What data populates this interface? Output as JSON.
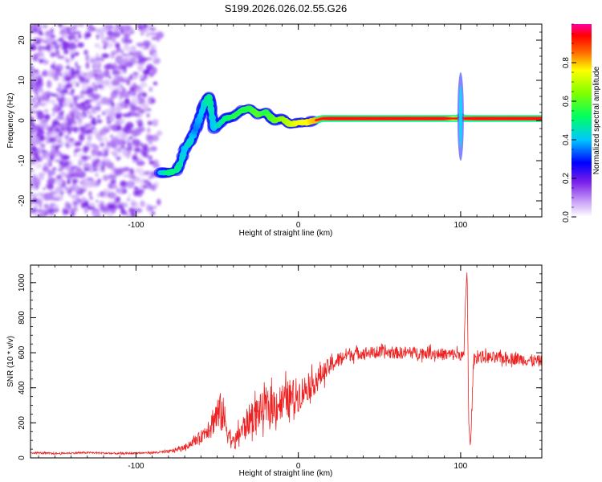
{
  "chart_data": [
    {
      "type": "heatmap",
      "title": "S199.2026.026.02.55.G26",
      "xlabel": "Height of straight line (km)",
      "ylabel": "Frequency (Hz)",
      "xlim": [
        -165,
        150
      ],
      "ylim": [
        -24,
        24
      ],
      "xticks": [
        -100,
        0,
        100
      ],
      "yticks": [
        -20,
        -10,
        0,
        10,
        20
      ],
      "colorbar": {
        "label": "Normalized spectral amplitude",
        "range": [
          0,
          1
        ],
        "ticks": [
          0.0,
          0.2,
          0.4,
          0.6,
          0.8
        ],
        "tick_labels": [
          "0.0",
          "0.2",
          "0.4",
          "0.6",
          "0.8"
        ],
        "colors": [
          "#ffffff",
          "#8a2be2",
          "#0000ff",
          "#00ffff",
          "#00ff00",
          "#ffff00",
          "#ff0000",
          "#ff00a0"
        ]
      },
      "noise_region": {
        "x_range": [
          -165,
          -85
        ],
        "y_range": [
          -24,
          24
        ],
        "amplitude": 0.15
      },
      "signal_track": {
        "x": [
          -85,
          -80,
          -75,
          -72,
          -70,
          -67,
          -63,
          -60,
          -57,
          -55,
          -52,
          -49,
          -45,
          -40,
          -35,
          -30,
          -25,
          -20,
          -15,
          -10,
          -5,
          0,
          5,
          10,
          15,
          20,
          30,
          50,
          70,
          90,
          98,
          100,
          102,
          110,
          130,
          150
        ],
        "y": [
          -13,
          -13,
          -12.5,
          -10,
          -7,
          -5.5,
          -2,
          1.5,
          5,
          6,
          -2,
          -1,
          0.5,
          1,
          2.5,
          3,
          1.5,
          2,
          0,
          0.5,
          -1,
          -0.5,
          -0.5,
          0,
          0.5,
          0.5,
          0.5,
          0.5,
          0.5,
          0.5,
          0.5,
          1,
          0.5,
          0.5,
          0.5,
          0.5
        ],
        "amplitude": [
          0.4,
          0.5,
          0.5,
          0.45,
          0.4,
          0.45,
          0.35,
          0.4,
          0.45,
          0.5,
          0.4,
          0.45,
          0.5,
          0.55,
          0.55,
          0.55,
          0.6,
          0.55,
          0.6,
          0.65,
          0.7,
          0.75,
          0.75,
          0.8,
          0.85,
          0.9,
          0.9,
          0.9,
          0.9,
          0.9,
          0.7,
          0.6,
          0.85,
          0.9,
          0.9,
          0.9
        ]
      },
      "vertical_spike": {
        "x": 100,
        "y_range": [
          -10,
          12
        ]
      }
    },
    {
      "type": "line",
      "xlabel": "Height of straight line (km)",
      "ylabel": "SNR (10 * v/v)",
      "xlim": [
        -165,
        150
      ],
      "ylim": [
        0,
        1100
      ],
      "xticks": [
        -100,
        0,
        100
      ],
      "yticks": [
        0,
        200,
        400,
        600,
        800,
        1000
      ],
      "series": [
        {
          "name": "SNR",
          "color": "#ee2222",
          "x": [
            -165,
            -150,
            -130,
            -110,
            -90,
            -80,
            -70,
            -65,
            -60,
            -55,
            -50,
            -47,
            -45,
            -42,
            -40,
            -35,
            -30,
            -25,
            -20,
            -15,
            -10,
            -5,
            0,
            5,
            10,
            15,
            20,
            25,
            30,
            40,
            50,
            60,
            70,
            80,
            90,
            95,
            100,
            102,
            103,
            104,
            105,
            106,
            107,
            108,
            110,
            120,
            130,
            140,
            150
          ],
          "values": [
            30,
            25,
            30,
            25,
            30,
            35,
            60,
            90,
            120,
            180,
            250,
            260,
            200,
            120,
            80,
            160,
            220,
            260,
            280,
            300,
            320,
            340,
            360,
            400,
            430,
            480,
            530,
            560,
            590,
            600,
            600,
            600,
            600,
            600,
            590,
            590,
            590,
            570,
            900,
            1080,
            200,
            60,
            300,
            560,
            580,
            570,
            570,
            560,
            550
          ],
          "noise": [
            5,
            5,
            5,
            5,
            5,
            10,
            15,
            25,
            35,
            60,
            110,
            120,
            100,
            60,
            40,
            70,
            90,
            100,
            100,
            110,
            110,
            110,
            100,
            80,
            70,
            60,
            50,
            45,
            40,
            35,
            35,
            35,
            35,
            35,
            35,
            35,
            35,
            35,
            0,
            0,
            0,
            0,
            40,
            35,
            35,
            35,
            35,
            35,
            35
          ]
        }
      ]
    }
  ]
}
